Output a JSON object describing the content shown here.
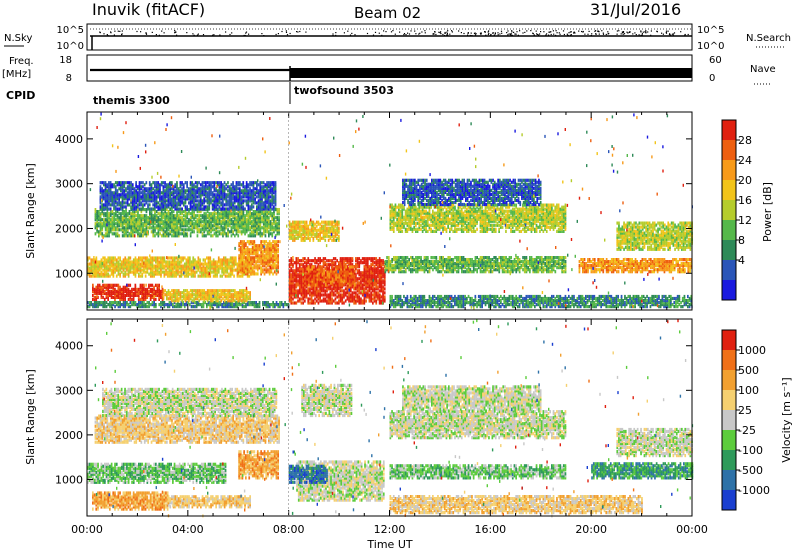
{
  "header": {
    "station": "Inuvik (fitACF)",
    "beam": "Beam 02",
    "date": "31/Jul/2016"
  },
  "top_panels": {
    "nsky_label": "N.Sky",
    "nsky_ticks": [
      "10^5",
      "10^0"
    ],
    "nsearch_label": "N.Search",
    "nsearch_ticks": [
      "10^5",
      "10^0"
    ],
    "freq_label": "Freq.",
    "freq_unit": "[MHz]",
    "freq_ticks": [
      "18",
      "8"
    ],
    "nave_label": "Nave",
    "nave_ticks": [
      "60",
      "0"
    ],
    "cpid_label": "CPID",
    "cpid_segments": [
      {
        "name": "themis 3300",
        "start_hour": 0
      },
      {
        "name": "twofsound 3503",
        "start_hour": 8
      }
    ]
  },
  "chart_data": [
    {
      "type": "heatmap",
      "name": "power",
      "ylabel": "Slant Range [km]",
      "yticks": [
        "4000",
        "3000",
        "2000",
        "1000"
      ],
      "ytick_values": [
        4000,
        3000,
        2000,
        1000
      ],
      "ylim": [
        180,
        4600
      ],
      "xlim_hours": [
        0,
        24
      ],
      "colorbar": {
        "label": "Power [dB]",
        "ticks": [
          "28",
          "24",
          "20",
          "16",
          "12",
          "8",
          "4"
        ],
        "colors": [
          "#1a1adf",
          "#2a55b8",
          "#2e8a58",
          "#55b84a",
          "#b5cc2c",
          "#f2c41a",
          "#f79a1a",
          "#ee5f10",
          "#e02010"
        ]
      },
      "bands": [
        {
          "x0": 0.0,
          "x1": 8.0,
          "y0": 220,
          "y1": 320,
          "level": 2
        },
        {
          "x0": 0.2,
          "x1": 3.0,
          "y0": 380,
          "y1": 700,
          "level": 8
        },
        {
          "x0": 3.0,
          "x1": 6.5,
          "y0": 350,
          "y1": 600,
          "level": 5
        },
        {
          "x0": 0.0,
          "x1": 6.5,
          "y0": 900,
          "y1": 1350,
          "level": 5
        },
        {
          "x0": 6.0,
          "x1": 7.6,
          "y0": 950,
          "y1": 1700,
          "level": 6
        },
        {
          "x0": 0.3,
          "x1": 7.6,
          "y0": 1800,
          "y1": 2400,
          "level": 3
        },
        {
          "x0": 0.5,
          "x1": 7.5,
          "y0": 2400,
          "y1": 3000,
          "level": 1
        },
        {
          "x0": 8.0,
          "x1": 11.8,
          "y0": 300,
          "y1": 1300,
          "level": 8
        },
        {
          "x0": 8.7,
          "x1": 10.6,
          "y0": 700,
          "y1": 1150,
          "level": 7
        },
        {
          "x0": 8.0,
          "x1": 10.0,
          "y0": 1700,
          "y1": 2150,
          "level": 5
        },
        {
          "x0": 11.8,
          "x1": 19.0,
          "y0": 1000,
          "y1": 1350,
          "level": 3
        },
        {
          "x0": 12.0,
          "x1": 19.0,
          "y0": 1900,
          "y1": 2500,
          "level": 4
        },
        {
          "x0": 12.5,
          "x1": 18.0,
          "y0": 2500,
          "y1": 3050,
          "level": 1
        },
        {
          "x0": 12.0,
          "x1": 24.0,
          "y0": 220,
          "y1": 450,
          "level": 2
        },
        {
          "x0": 19.5,
          "x1": 24.0,
          "y0": 1000,
          "y1": 1300,
          "level": 6
        },
        {
          "x0": 21.0,
          "x1": 24.0,
          "y0": 1500,
          "y1": 2100,
          "level": 4
        }
      ]
    },
    {
      "type": "heatmap",
      "name": "velocity",
      "ylabel": "Slant Range [km]",
      "yticks": [
        "4000",
        "3000",
        "2000",
        "1000"
      ],
      "ytick_values": [
        4000,
        3000,
        2000,
        1000
      ],
      "ylim": [
        180,
        4600
      ],
      "xlim_hours": [
        0,
        24
      ],
      "xlabel": "Time UT",
      "xticks": [
        "00:00",
        "04:00",
        "08:00",
        "12:00",
        "16:00",
        "20:00",
        "00:00"
      ],
      "xtick_hours": [
        0,
        4,
        8,
        12,
        16,
        20,
        24
      ],
      "colorbar": {
        "label": "Velocity [m s⁻¹]",
        "ticks": [
          "1000",
          "500",
          "100",
          "25",
          "-25",
          "-100",
          "-500",
          "-1000"
        ],
        "colors": [
          "#1a3fd0",
          "#2e72a8",
          "#2e9a5a",
          "#5ccc3c",
          "#c8c8c8",
          "#f5d070",
          "#f2a030",
          "#f07018",
          "#e02010"
        ]
      },
      "bands": [
        {
          "x0": 0.2,
          "x1": 3.2,
          "y0": 300,
          "y1": 700,
          "level": 6
        },
        {
          "x0": 3.2,
          "x1": 6.5,
          "y0": 350,
          "y1": 600,
          "level": 5
        },
        {
          "x0": 0.0,
          "x1": 5.5,
          "y0": 900,
          "y1": 1350,
          "level": 3
        },
        {
          "x0": 6.0,
          "x1": 7.6,
          "y0": 1000,
          "y1": 1600,
          "level": 6
        },
        {
          "x0": 0.3,
          "x1": 7.6,
          "y0": 1800,
          "y1": 2400,
          "level": 5
        },
        {
          "x0": 0.6,
          "x1": 7.5,
          "y0": 2400,
          "y1": 3000,
          "level": 4
        },
        {
          "x0": 8.3,
          "x1": 11.8,
          "y0": 500,
          "y1": 1400,
          "level": 4
        },
        {
          "x0": 8.0,
          "x1": 9.5,
          "y0": 900,
          "y1": 1300,
          "level": 1
        },
        {
          "x0": 8.5,
          "x1": 10.5,
          "y0": 2400,
          "y1": 3100,
          "level": 4
        },
        {
          "x0": 12.0,
          "x1": 19.0,
          "y0": 1000,
          "y1": 1300,
          "level": 3
        },
        {
          "x0": 12.0,
          "x1": 19.0,
          "y0": 1900,
          "y1": 2500,
          "level": 4
        },
        {
          "x0": 12.5,
          "x1": 18.0,
          "y0": 2500,
          "y1": 3050,
          "level": 4
        },
        {
          "x0": 12.0,
          "x1": 22.0,
          "y0": 220,
          "y1": 600,
          "level": 5
        },
        {
          "x0": 20.0,
          "x1": 24.0,
          "y0": 1000,
          "y1": 1350,
          "level": 2
        },
        {
          "x0": 21.0,
          "x1": 24.0,
          "y0": 1500,
          "y1": 2100,
          "level": 4
        }
      ]
    }
  ]
}
